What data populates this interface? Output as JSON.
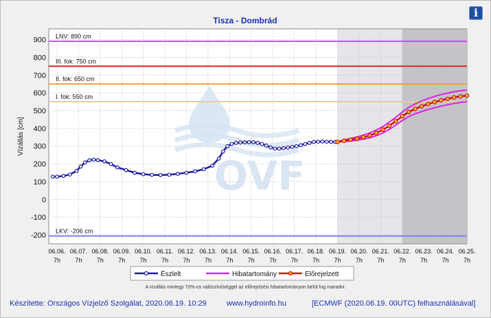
{
  "chart_data": {
    "type": "line",
    "title": "Tisza - Dombrád",
    "ylabel": "Vízállás [cm]",
    "ylim": [
      -250,
      960
    ],
    "yticks": [
      -200,
      -100,
      0,
      100,
      200,
      300,
      400,
      500,
      600,
      700,
      800,
      900
    ],
    "x_ticks": [
      "06.06.",
      "06.07.",
      "06.08.",
      "06.09.",
      "06.10.",
      "06.11.",
      "06.12.",
      "06.13.",
      "06.14.",
      "06.15.",
      "06.16.",
      "06.17.",
      "06.18.",
      "06.19.",
      "06.20.",
      "06.21.",
      "06.22.",
      "06.23.",
      "06.24.",
      "06.25."
    ],
    "x_tick_sublabel": "7h",
    "thresholds": [
      {
        "label": "LNV: 890 cm",
        "value": 890,
        "color": "#e040e0"
      },
      {
        "label": "III. fok: 750 cm",
        "value": 750,
        "color": "#e02020"
      },
      {
        "label": "II. fok: 650 cm",
        "value": 650,
        "color": "#f0a030"
      },
      {
        "label": "I. fok: 550 cm",
        "value": 550,
        "color": "#e8e030"
      },
      {
        "label": "LKV: -206 cm",
        "value": -206,
        "color": "#8080f0"
      }
    ],
    "forecast_start_day": 13.0,
    "forecast_dark_start_day": 16.0,
    "series": [
      {
        "name": "Észlelt",
        "color": "#1a1aa0",
        "x_days": [
          -0.2,
          0,
          0.3,
          0.6,
          0.9,
          1.1,
          1.3,
          1.5,
          1.7,
          1.9,
          2.2,
          2.5,
          2.8,
          3.2,
          3.6,
          4.0,
          4.4,
          4.8,
          5.2,
          5.6,
          6.0,
          6.4,
          6.8,
          7.2,
          7.5,
          7.7,
          7.9,
          8.1,
          8.3,
          8.5,
          8.7,
          8.9,
          9.1,
          9.3,
          9.5,
          9.7,
          9.9,
          10.1,
          10.3,
          10.5,
          10.7,
          10.9,
          11.1,
          11.3,
          11.5,
          11.7,
          11.9,
          12.1,
          12.3,
          12.5,
          12.7,
          12.9,
          13.0
        ],
        "values": [
          128,
          128,
          132,
          140,
          160,
          185,
          208,
          220,
          224,
          221,
          214,
          199,
          180,
          165,
          150,
          142,
          138,
          137,
          139,
          144,
          150,
          158,
          170,
          190,
          230,
          270,
          300,
          312,
          318,
          320,
          321,
          322,
          322,
          318,
          312,
          303,
          292,
          286,
          286,
          288,
          292,
          296,
          300,
          305,
          312,
          318,
          323,
          325,
          326,
          325,
          324,
          323,
          324
        ]
      },
      {
        "name": "Előrejelzett",
        "color": "#d01010",
        "x_days": [
          13.0,
          13.3,
          13.6,
          13.9,
          14.2,
          14.5,
          14.8,
          15.1,
          15.4,
          15.7,
          16.0,
          16.3,
          16.6,
          16.9,
          17.2,
          17.5,
          17.8,
          18.1,
          18.4,
          18.7,
          19.0
        ],
        "values": [
          324,
          330,
          336,
          342,
          350,
          360,
          374,
          392,
          414,
          440,
          468,
          492,
          510,
          524,
          537,
          548,
          558,
          566,
          574,
          580,
          584
        ]
      },
      {
        "name": "Hibatartomány",
        "color": "#e020e0",
        "upper": [
          324,
          335,
          343,
          352,
          362,
          374,
          390,
          410,
          435,
          462,
          492,
          518,
          538,
          554,
          568,
          580,
          590,
          598,
          606,
          612,
          615
        ],
        "lower": [
          324,
          325,
          329,
          333,
          339,
          347,
          359,
          374,
          394,
          418,
          444,
          466,
          482,
          494,
          506,
          516,
          525,
          533,
          540,
          546,
          550
        ]
      }
    ],
    "legend": [
      "Észlelt",
      "Hibatartomány",
      "Előrejelzett"
    ],
    "legend_position": "bottom"
  },
  "watermark": {
    "text": "OVF"
  },
  "note": "A vízállás mintegy 70%-os valószínűséggel az előrejelzési hibatartományon belül fog maradni.",
  "footer": {
    "author": "Készítette: Országos Vízjelző Szolgálat, 2020.06.19. 10:29",
    "website": "www.hydroinfo.hu",
    "model": "[ECMWF (2020.06.19. 00UTC) felhasználásával]"
  },
  "info_button": {
    "label": "i",
    "icon": "info-icon"
  }
}
